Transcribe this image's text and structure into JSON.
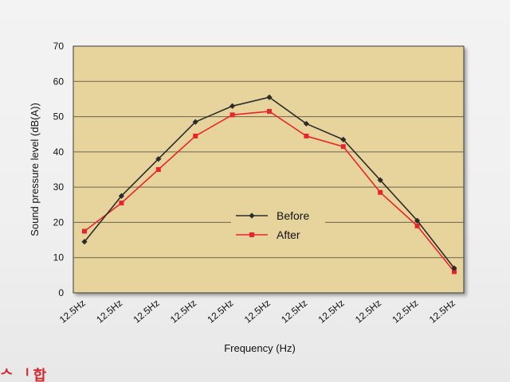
{
  "chart_data": {
    "type": "line",
    "title": "",
    "xlabel": "Frequency (Hz)",
    "ylabel": "Sound pressure level (dB(A))",
    "categories": [
      "12.5Hz",
      "12.5Hz",
      "12.5Hz",
      "12.5Hz",
      "12.5Hz",
      "12.5Hz",
      "12.5Hz",
      "12.5Hz",
      "12.5Hz",
      "12.5Hz",
      "12.5Hz"
    ],
    "ylim": [
      0,
      70
    ],
    "yticks": [
      "0",
      "10",
      "20",
      "30",
      "40",
      "50",
      "60",
      "70"
    ],
    "grid": true,
    "legend_position": "center-right",
    "series": [
      {
        "name": "Before",
        "color": "#2b2b2b",
        "marker": "diamond",
        "values": [
          14.5,
          27.5,
          38,
          48.5,
          53,
          55.5,
          48,
          43.5,
          32,
          20.5,
          7
        ]
      },
      {
        "name": "After",
        "color": "#e8242e",
        "marker": "square",
        "values": [
          17.5,
          25.5,
          35,
          44.5,
          50.5,
          51.5,
          44.5,
          41.5,
          28.5,
          19,
          6
        ]
      }
    ]
  },
  "colors": {
    "plot_background": "#e7d49c",
    "grid_line": "#6b6350",
    "frame": "#3a3a3a"
  },
  "corner_text": "ᄉ ᅵ 합"
}
